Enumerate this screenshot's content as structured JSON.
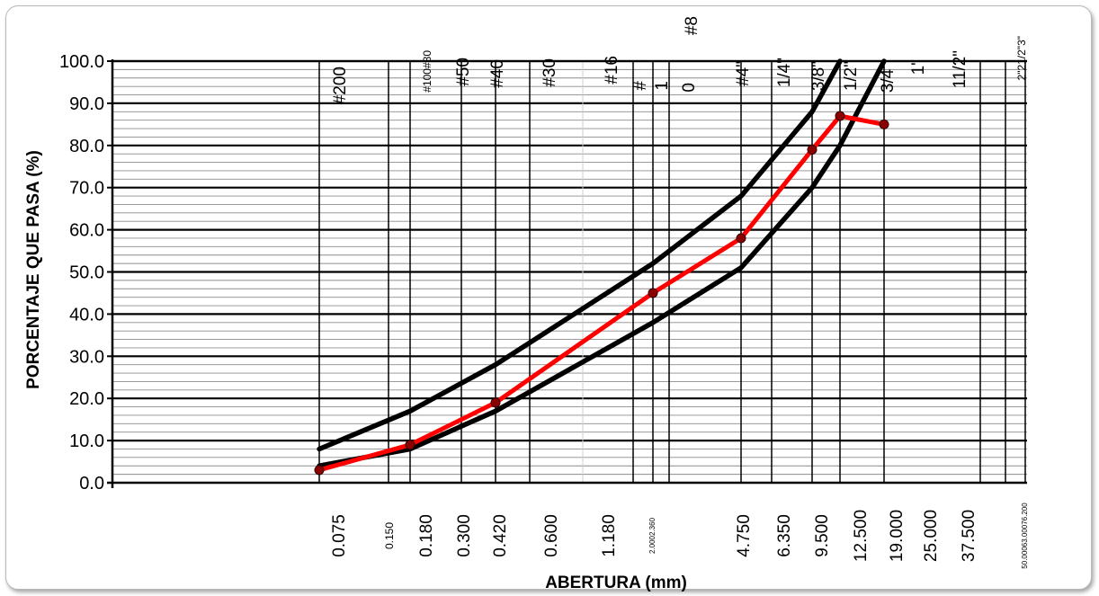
{
  "chart_data": {
    "type": "line",
    "title": "",
    "xlabel": "ABERTURA (mm)",
    "ylabel": "PORCENTAJE  QUE PASA (%)",
    "x_scale": "log",
    "ylim": [
      0,
      100
    ],
    "y_ticks": [
      "0.0",
      "10.0",
      "20.0",
      "30.0",
      "40.0",
      "50.0",
      "60.0",
      "70.0",
      "80.0",
      "90.0",
      "100.0"
    ],
    "x_tick_labels": [
      "0.075",
      "0.150",
      "0.180",
      "0.300",
      "0.420",
      "0.600",
      "1.180",
      "2.0002.360",
      "4.750",
      "6.350",
      "9.500",
      "12.500",
      "19.000",
      "25.000",
      "37.500",
      "50.00063.00076.200"
    ],
    "sieve_labels": [
      "#200",
      "#100#80",
      "#50",
      "#40",
      "#30",
      "#16",
      "#",
      "1",
      "0",
      "#8",
      "#4\"",
      "1/4\"",
      "3/8\"",
      "1/2\"",
      "3/4\"",
      "1\"",
      "11/2\"",
      "2\"21/2\"3\""
    ],
    "grid": true,
    "series": [
      {
        "color": "#000000",
        "x": [
          0.075,
          0.18,
          0.42,
          2.36,
          4.75,
          9.5,
          12.5
        ],
        "values": [
          8,
          17,
          28,
          52,
          68,
          88,
          100
        ]
      },
      {
        "color": "#000000",
        "x": [
          0.075,
          0.18,
          0.42,
          2.36,
          4.75,
          9.5,
          12.5,
          19.0
        ],
        "values": [
          4,
          8,
          17,
          38,
          51,
          70,
          80,
          100
        ]
      },
      {
        "color": "#ff0000",
        "marker_color": "#8b0000",
        "x": [
          0.075,
          0.18,
          0.42,
          2.36,
          4.75,
          9.5,
          12.5,
          19.0
        ],
        "values": [
          3,
          9,
          19,
          45,
          58,
          79,
          87,
          85
        ]
      }
    ]
  }
}
